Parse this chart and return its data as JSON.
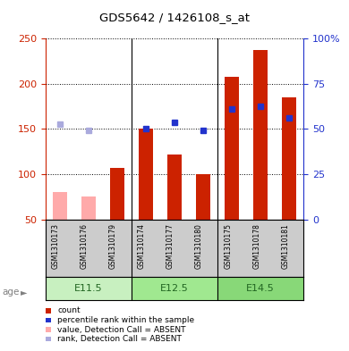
{
  "title": "GDS5642 / 1426108_s_at",
  "samples": [
    "GSM1310173",
    "GSM1310176",
    "GSM1310179",
    "GSM1310174",
    "GSM1310177",
    "GSM1310180",
    "GSM1310175",
    "GSM1310178",
    "GSM1310181"
  ],
  "age_groups": [
    {
      "label": "E11.5",
      "start": 0,
      "end": 3
    },
    {
      "label": "E12.5",
      "start": 3,
      "end": 6
    },
    {
      "label": "E14.5",
      "start": 6,
      "end": 9
    }
  ],
  "count_values": [
    null,
    null,
    107,
    150,
    122,
    100,
    208,
    237,
    185
  ],
  "rank_values": [
    null,
    null,
    null,
    150,
    157,
    148,
    172,
    175,
    162
  ],
  "count_absent": [
    80,
    75,
    null,
    null,
    null,
    null,
    null,
    null,
    null
  ],
  "rank_absent": [
    155,
    148,
    null,
    null,
    null,
    null,
    null,
    null,
    null
  ],
  "ylim_left": [
    50,
    250
  ],
  "ylim_right": [
    0,
    100
  ],
  "yticks_left": [
    50,
    100,
    150,
    200,
    250
  ],
  "yticks_right": [
    0,
    25,
    50,
    75,
    100
  ],
  "bar_color": "#cc2200",
  "rank_color": "#2233cc",
  "absent_bar_color": "#ffaaaa",
  "absent_rank_color": "#aaaadd",
  "bg_color": "#cccccc",
  "plot_bg": "#ffffff",
  "bar_width": 0.5,
  "left_yaxis_color": "#cc2200",
  "right_yaxis_color": "#2233cc",
  "age_label_color": "#226622",
  "legend_items": [
    {
      "label": "count",
      "color": "#cc2200"
    },
    {
      "label": "percentile rank within the sample",
      "color": "#2233cc"
    },
    {
      "label": "value, Detection Call = ABSENT",
      "color": "#ffaaaa"
    },
    {
      "label": "rank, Detection Call = ABSENT",
      "color": "#aaaadd"
    }
  ]
}
